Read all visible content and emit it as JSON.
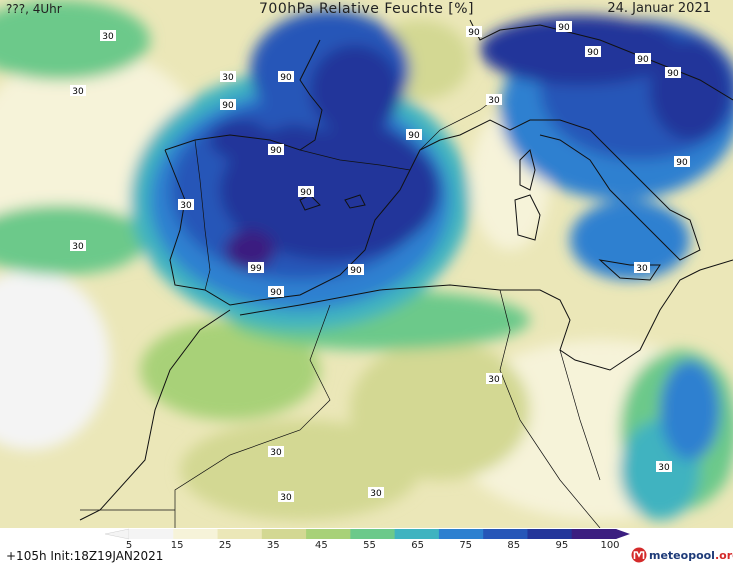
{
  "header": {
    "left": "???, 4Uhr",
    "title": "700hPa Relative Feuchte [%]",
    "date": "24. Januar 2021"
  },
  "footer": {
    "run": "+105h Init:18Z19JAN2021",
    "logo_main": "meteopool",
    "logo_sub": ".org"
  },
  "legend": {
    "ticks": [
      "5",
      "15",
      "25",
      "35",
      "45",
      "55",
      "65",
      "75",
      "85",
      "95",
      "100"
    ],
    "colors": [
      "#f4f4f4",
      "#f6f3d9",
      "#ebe7b8",
      "#d3d893",
      "#a8d178",
      "#6cc98a",
      "#3fb3c0",
      "#2d80d0",
      "#2656b8",
      "#23359a",
      "#3b1e80"
    ]
  },
  "map_labels": [
    {
      "text": "30"
    },
    {
      "text": "30"
    },
    {
      "text": "30"
    },
    {
      "text": "90"
    },
    {
      "text": "90"
    },
    {
      "text": "90"
    },
    {
      "text": "90"
    },
    {
      "text": "90"
    },
    {
      "text": "90"
    },
    {
      "text": "90"
    },
    {
      "text": "90"
    },
    {
      "text": "30"
    },
    {
      "text": "30"
    },
    {
      "text": "90"
    },
    {
      "text": "90"
    },
    {
      "text": "99"
    },
    {
      "text": "90"
    },
    {
      "text": "90"
    },
    {
      "text": "30"
    },
    {
      "text": "90"
    },
    {
      "text": "30"
    },
    {
      "text": "30"
    },
    {
      "text": "30"
    },
    {
      "text": "30"
    },
    {
      "text": "30"
    },
    {
      "text": "30"
    }
  ]
}
